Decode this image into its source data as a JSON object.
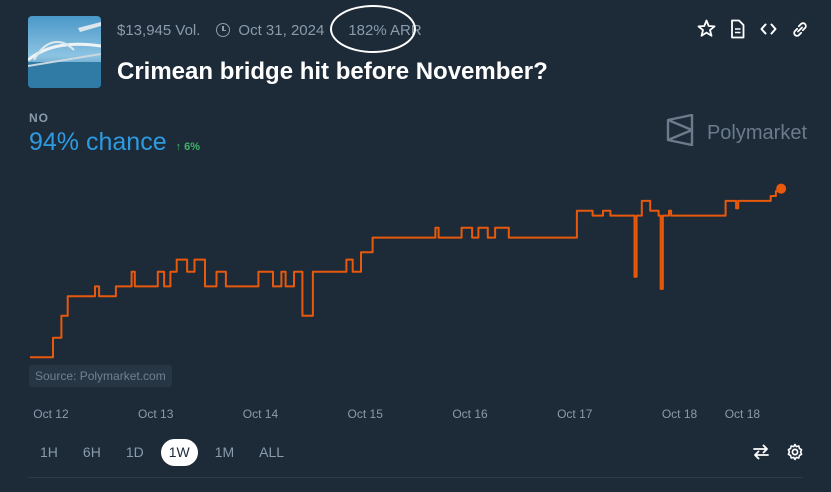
{
  "header": {
    "volume": "$13,945 Vol.",
    "end_date": "Oct 31, 2024",
    "arr": "182% ARR",
    "title": "Crimean bridge hit before November?"
  },
  "icons": [
    "star-icon",
    "document-icon",
    "code-icon",
    "link-icon",
    "shield-icon",
    "compare-icon",
    "gear-icon",
    "clock-icon"
  ],
  "outcome": {
    "label": "NO",
    "chance": "94% chance",
    "delta": "↑ 6%",
    "chance_color": "#2e9ae0",
    "delta_color": "#3db468"
  },
  "brand": {
    "name": "Polymarket"
  },
  "source": "Source: Polymarket.com",
  "chart_data": {
    "type": "line",
    "title": "",
    "xlabel": "",
    "ylabel": "",
    "grid": false,
    "color": "#e8590c",
    "x_ticks": [
      "Oct 12",
      "Oct 13",
      "Oct 14",
      "Oct 15",
      "Oct 16",
      "Oct 17",
      "Oct 18",
      "Oct 18"
    ],
    "x_tick_pos": [
      0.2,
      1.2,
      2.2,
      3.2,
      4.2,
      5.2,
      6.2,
      6.8
    ],
    "xlim": [
      0,
      7.35
    ],
    "ylim": [
      86,
      95
    ],
    "series": [
      {
        "name": "",
        "points": [
          [
            0,
            87.5
          ],
          [
            0.2,
            87.5
          ],
          [
            0.22,
            88.3
          ],
          [
            0.25,
            88.3
          ],
          [
            0.3,
            89.2
          ],
          [
            0.33,
            89.2
          ],
          [
            0.36,
            90.0
          ],
          [
            0.6,
            90.0
          ],
          [
            0.62,
            90.4
          ],
          [
            0.66,
            90.0
          ],
          [
            0.8,
            90.0
          ],
          [
            0.82,
            90.4
          ],
          [
            0.95,
            90.4
          ],
          [
            0.97,
            91.0
          ],
          [
            1.0,
            90.4
          ],
          [
            1.2,
            90.4
          ],
          [
            1.22,
            91.0
          ],
          [
            1.25,
            91.0
          ],
          [
            1.28,
            90.4
          ],
          [
            1.32,
            90.4
          ],
          [
            1.34,
            91.0
          ],
          [
            1.38,
            91.0
          ],
          [
            1.4,
            91.5
          ],
          [
            1.48,
            91.5
          ],
          [
            1.5,
            91.0
          ],
          [
            1.55,
            91.0
          ],
          [
            1.57,
            91.5
          ],
          [
            1.65,
            91.5
          ],
          [
            1.67,
            90.4
          ],
          [
            1.75,
            90.4
          ],
          [
            1.78,
            91.0
          ],
          [
            1.85,
            91.0
          ],
          [
            1.87,
            90.4
          ],
          [
            2.15,
            90.4
          ],
          [
            2.18,
            91.0
          ],
          [
            2.3,
            91.0
          ],
          [
            2.32,
            90.4
          ],
          [
            2.38,
            90.4
          ],
          [
            2.4,
            91.0
          ],
          [
            2.44,
            90.4
          ],
          [
            2.5,
            90.4
          ],
          [
            2.52,
            91.0
          ],
          [
            2.58,
            91.0
          ],
          [
            2.6,
            89.2
          ],
          [
            2.68,
            89.2
          ],
          [
            2.7,
            91.0
          ],
          [
            3.0,
            91.0
          ],
          [
            3.02,
            91.5
          ],
          [
            3.06,
            91.5
          ],
          [
            3.08,
            91.0
          ],
          [
            3.14,
            91.0
          ],
          [
            3.16,
            91.8
          ],
          [
            3.25,
            91.8
          ],
          [
            3.27,
            92.4
          ],
          [
            3.85,
            92.4
          ],
          [
            3.87,
            92.8
          ],
          [
            3.9,
            92.4
          ],
          [
            4.1,
            92.4
          ],
          [
            4.12,
            92.8
          ],
          [
            4.2,
            92.8
          ],
          [
            4.22,
            92.4
          ],
          [
            4.26,
            92.4
          ],
          [
            4.28,
            92.8
          ],
          [
            4.35,
            92.8
          ],
          [
            4.37,
            92.4
          ],
          [
            4.42,
            92.4
          ],
          [
            4.44,
            92.8
          ],
          [
            4.55,
            92.8
          ],
          [
            4.57,
            92.4
          ],
          [
            5.2,
            92.4
          ],
          [
            5.22,
            93.5
          ],
          [
            5.35,
            93.5
          ],
          [
            5.37,
            93.3
          ],
          [
            5.45,
            93.3
          ],
          [
            5.47,
            93.5
          ],
          [
            5.52,
            93.5
          ],
          [
            5.54,
            93.3
          ],
          [
            5.75,
            93.3
          ],
          [
            5.77,
            90.8
          ],
          [
            5.79,
            93.3
          ],
          [
            5.82,
            93.3
          ],
          [
            5.84,
            93.9
          ],
          [
            5.9,
            93.9
          ],
          [
            5.92,
            93.5
          ],
          [
            5.98,
            93.5
          ],
          [
            6.0,
            93.3
          ],
          [
            6.02,
            90.3
          ],
          [
            6.04,
            93.3
          ],
          [
            6.08,
            93.3
          ],
          [
            6.1,
            93.5
          ],
          [
            6.12,
            93.3
          ],
          [
            6.2,
            93.3
          ],
          [
            6.22,
            93.3
          ],
          [
            6.62,
            93.3
          ],
          [
            6.64,
            93.9
          ],
          [
            6.72,
            93.9
          ],
          [
            6.74,
            93.6
          ],
          [
            6.76,
            93.9
          ],
          [
            7.05,
            93.9
          ],
          [
            7.07,
            94.1
          ],
          [
            7.1,
            94.1
          ],
          [
            7.12,
            94.3
          ],
          [
            7.17,
            94.4
          ]
        ]
      }
    ]
  },
  "ranges": [
    "1H",
    "6H",
    "1D",
    "1W",
    "1M",
    "ALL"
  ],
  "active_range": "1W"
}
